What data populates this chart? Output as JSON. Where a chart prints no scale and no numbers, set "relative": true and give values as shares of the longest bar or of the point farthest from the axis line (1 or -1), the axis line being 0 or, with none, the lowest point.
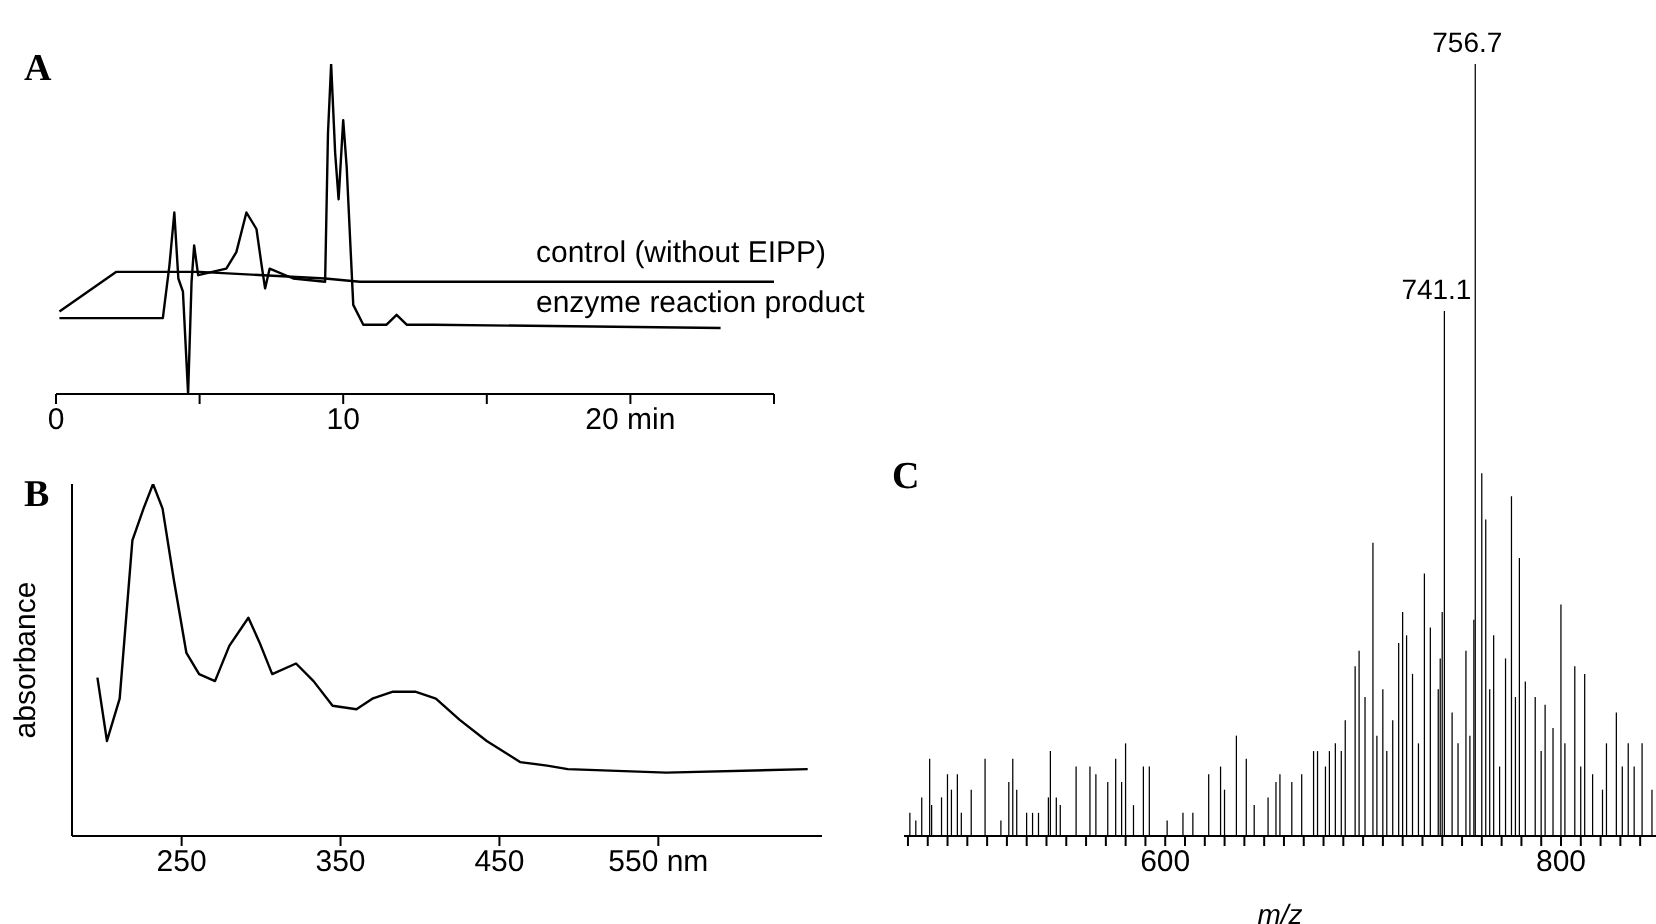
{
  "chart_data": [
    {
      "type": "line",
      "title": "A",
      "relative": true,
      "marker": "none",
      "legend": false,
      "grid": false,
      "xlim": [
        0,
        25
      ],
      "xticks": [
        0,
        {
          "value": 5,
          "label": null
        },
        10,
        {
          "value": 15,
          "label": null
        },
        {
          "value": 20,
          "label": "20 min"
        },
        {
          "value": 25,
          "label": null
        }
      ],
      "series": [
        {
          "name": "control (without EIPP)",
          "color": "#000000",
          "x": [
            0.12,
            2.09,
            5.0,
            9.37,
            10.58,
            25.0
          ],
          "values": [
            0.25,
            0.37,
            0.37,
            0.35,
            0.34,
            0.34
          ]
        },
        {
          "name": "enzyme reaction product",
          "color": "#000000",
          "x": [
            0.12,
            3.72,
            3.95,
            4.12,
            4.26,
            4.42,
            4.6,
            4.72,
            4.81,
            4.95,
            5.93,
            6.28,
            6.63,
            6.98,
            7.16,
            7.28,
            7.44,
            8.26,
            9.37,
            9.47,
            9.58,
            9.72,
            9.84,
            10.0,
            10.12,
            10.35,
            10.7,
            11.51,
            11.86,
            12.21,
            13.14,
            23.14
          ],
          "values": [
            0.23,
            0.23,
            0.39,
            0.55,
            0.35,
            0.31,
            0,
            0.34,
            0.45,
            0.36,
            0.38,
            0.43,
            0.55,
            0.5,
            0.39,
            0.32,
            0.38,
            0.35,
            0.34,
            0.79,
            1,
            0.73,
            0.59,
            0.83,
            0.69,
            0.27,
            0.21,
            0.21,
            0.24,
            0.21,
            0.21,
            0.2
          ]
        }
      ]
    },
    {
      "type": "line",
      "title": "B",
      "ylabel": "absorbance",
      "relative": true,
      "marker": "none",
      "legend": false,
      "grid": false,
      "xlim": [
        181,
        653
      ],
      "xticks": [
        250,
        350,
        450,
        {
          "value": 550,
          "label": "550 nm"
        }
      ],
      "series": [
        {
          "color": "#000000",
          "x": [
            197,
            203,
            211,
            219,
            226,
            232,
            238,
            245,
            253,
            261,
            271,
            280,
            292,
            299,
            307,
            322,
            333,
            345,
            360,
            370,
            383,
            397,
            410,
            425,
            442,
            463,
            480,
            493,
            555,
            644
          ],
          "values": [
            0.45,
            0.27,
            0.39,
            0.84,
            0.93,
            1.0,
            0.93,
            0.73,
            0.52,
            0.46,
            0.44,
            0.54,
            0.62,
            0.55,
            0.46,
            0.49,
            0.44,
            0.37,
            0.36,
            0.39,
            0.41,
            0.41,
            0.39,
            0.33,
            0.27,
            0.21,
            0.2,
            0.19,
            0.18,
            0.19
          ]
        }
      ]
    },
    {
      "type": "bar",
      "title": "C",
      "xlabel": "m/z",
      "relative": true,
      "legend": false,
      "grid": false,
      "xlim": [
        468,
        848
      ],
      "xticks": [
        {
          "value": 470,
          "label": null
        },
        {
          "value": 480,
          "label": null
        },
        {
          "value": 490,
          "label": null
        },
        {
          "value": 500,
          "label": null
        },
        {
          "value": 510,
          "label": null
        },
        {
          "value": 520,
          "label": null
        },
        {
          "value": 530,
          "label": null
        },
        {
          "value": 540,
          "label": null
        },
        {
          "value": 550,
          "label": null
        },
        {
          "value": 560,
          "label": null
        },
        {
          "value": 570,
          "label": null
        },
        {
          "value": 580,
          "label": null
        },
        {
          "value": 590,
          "label": null
        },
        600,
        {
          "value": 610,
          "label": null
        },
        {
          "value": 620,
          "label": null
        },
        {
          "value": 630,
          "label": null
        },
        {
          "value": 640,
          "label": null
        },
        {
          "value": 650,
          "label": null
        },
        {
          "value": 660,
          "label": null
        },
        {
          "value": 670,
          "label": null
        },
        {
          "value": 680,
          "label": null
        },
        {
          "value": 690,
          "label": null
        },
        {
          "value": 700,
          "label": null
        },
        {
          "value": 710,
          "label": null
        },
        {
          "value": 720,
          "label": null
        },
        {
          "value": 730,
          "label": null
        },
        {
          "value": 740,
          "label": null
        },
        {
          "value": 750,
          "label": null
        },
        {
          "value": 760,
          "label": null
        },
        {
          "value": 770,
          "label": null
        },
        {
          "value": 780,
          "label": null
        },
        {
          "value": 790,
          "label": null
        },
        800,
        {
          "value": 810,
          "label": null
        },
        {
          "value": 820,
          "label": null
        },
        {
          "value": 830,
          "label": null
        },
        {
          "value": 840,
          "label": null
        }
      ],
      "annotations": [
        {
          "text": "756.7",
          "x": 756.7,
          "y": 1
        },
        {
          "text": "741.1",
          "x": 741.1,
          "y": 0.68
        }
      ],
      "series": [
        {
          "color": "#000000",
          "x": [
            471,
            474,
            477,
            481,
            482,
            487,
            490,
            492,
            495,
            497,
            502,
            509,
            517,
            521,
            523,
            525,
            530,
            533,
            536,
            541,
            542,
            545,
            547,
            555,
            562,
            565,
            571,
            575,
            578,
            580,
            584,
            589,
            592,
            601,
            609,
            614,
            622,
            628,
            630,
            636,
            641,
            645,
            652,
            656,
            658,
            664,
            669,
            675,
            677,
            681,
            683,
            686,
            689,
            691,
            696,
            698,
            701,
            705,
            707,
            710,
            712,
            715,
            718,
            720,
            722,
            725,
            728,
            731,
            734,
            738,
            739,
            740,
            741.1,
            745,
            748,
            752,
            754,
            756,
            756.7,
            760,
            762,
            764,
            766,
            769,
            772,
            775,
            777,
            779,
            782,
            787,
            790,
            792,
            796,
            800,
            802,
            807,
            810,
            812,
            816,
            821,
            823,
            828,
            831,
            834,
            837,
            841,
            846
          ],
          "values": [
            0.03,
            0.02,
            0.05,
            0.1,
            0.04,
            0.05,
            0.08,
            0.06,
            0.08,
            0.03,
            0.06,
            0.1,
            0.02,
            0.07,
            0.1,
            0.06,
            0.03,
            0.03,
            0.03,
            0.05,
            0.11,
            0.05,
            0.04,
            0.09,
            0.09,
            0.08,
            0.07,
            0.1,
            0.07,
            0.12,
            0.04,
            0.09,
            0.09,
            0.02,
            0.03,
            0.03,
            0.08,
            0.09,
            0.06,
            0.13,
            0.1,
            0.04,
            0.05,
            0.07,
            0.08,
            0.07,
            0.08,
            0.11,
            0.11,
            0.09,
            0.11,
            0.12,
            0.11,
            0.15,
            0.22,
            0.24,
            0.18,
            0.38,
            0.13,
            0.19,
            0.11,
            0.15,
            0.25,
            0.29,
            0.26,
            0.21,
            0.12,
            0.34,
            0.27,
            0.19,
            0.23,
            0.29,
            0.68,
            0.16,
            0.12,
            0.24,
            0.13,
            0.28,
            1,
            0.47,
            0.41,
            0.19,
            0.26,
            0.09,
            0.23,
            0.44,
            0.18,
            0.36,
            0.2,
            0.18,
            0.11,
            0.17,
            0.14,
            0.3,
            0.12,
            0.22,
            0.09,
            0.21,
            0.08,
            0.06,
            0.12,
            0.16,
            0.09,
            0.12,
            0.09,
            0.12,
            0.06
          ]
        }
      ]
    }
  ]
}
